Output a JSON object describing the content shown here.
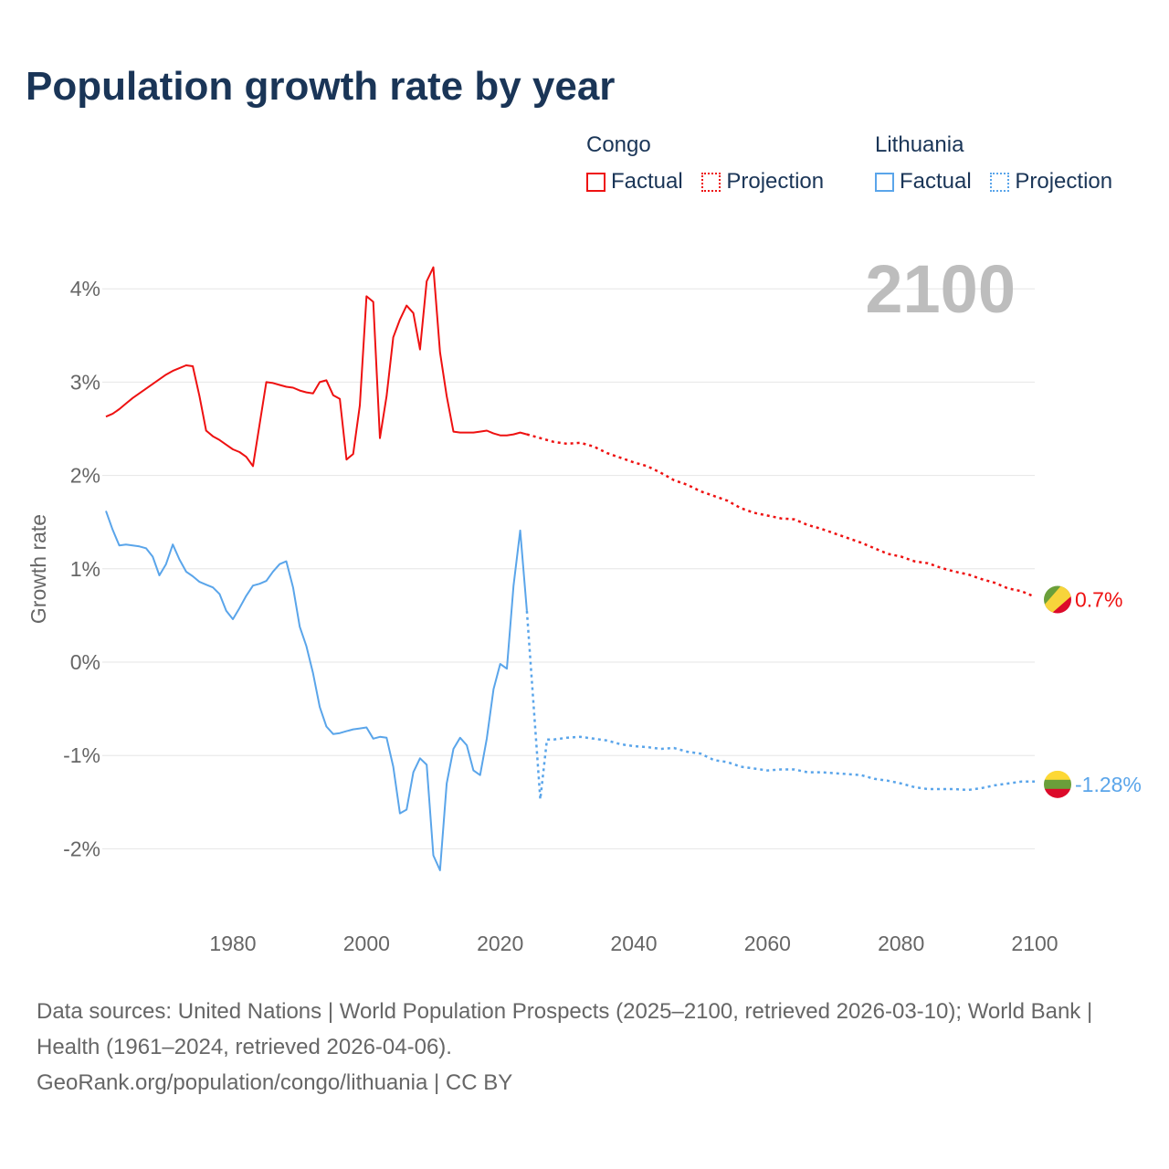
{
  "title": "Population growth rate by year",
  "legend": {
    "groups": [
      {
        "name": "Congo",
        "factual": "Factual",
        "projection": "Projection",
        "color": "#ee1111"
      },
      {
        "name": "Lithuania",
        "factual": "Factual",
        "projection": "Projection",
        "color": "#5aa5ea"
      }
    ]
  },
  "footer": {
    "sources": "Data sources: United Nations | World Population Prospects (2025–2100, retrieved 2026-03-10); World Bank | Health (1961–2024, retrieved 2026-04-06).",
    "credit": "GeoRank.org/population/congo/lithuania | CC BY"
  },
  "chart_data": {
    "type": "line",
    "title": "Population growth rate by year",
    "ylabel": "Growth rate",
    "xlabel": "",
    "year_label": "2100",
    "xlim": [
      1961,
      2100
    ],
    "ylim": [
      -2.5,
      4.3
    ],
    "x_ticks": [
      1980,
      2000,
      2020,
      2040,
      2060,
      2080,
      2100
    ],
    "x_tick_labels": [
      "1980",
      "2000",
      "2020",
      "2040",
      "2060",
      "2080",
      "2100"
    ],
    "y_ticks": [
      4,
      3,
      2,
      1,
      0,
      -1,
      -2
    ],
    "y_tick_labels": [
      "4%",
      "3%",
      "2%",
      "1%",
      "0%",
      "-1%",
      "-2%"
    ],
    "grid": true,
    "series": [
      {
        "name": "Congo",
        "color": "#ee1111",
        "end_label": "0.7%",
        "flag_colors": [
          "#6a9f3a",
          "#f7d43b",
          "#dc0a2a"
        ],
        "factual": {
          "x": [
            1961,
            1962,
            1963,
            1964,
            1965,
            1966,
            1967,
            1968,
            1969,
            1970,
            1971,
            1972,
            1973,
            1974,
            1975,
            1976,
            1977,
            1978,
            1979,
            1980,
            1981,
            1982,
            1983,
            1984,
            1985,
            1986,
            1987,
            1988,
            1989,
            1990,
            1991,
            1992,
            1993,
            1994,
            1995,
            1996,
            1997,
            1998,
            1999,
            2000,
            2001,
            2002,
            2003,
            2004,
            2005,
            2006,
            2007,
            2008,
            2009,
            2010,
            2011,
            2012,
            2013,
            2014,
            2015,
            2016,
            2017,
            2018,
            2019,
            2020,
            2021,
            2022,
            2023,
            2024
          ],
          "y": [
            2.63,
            2.66,
            2.71,
            2.77,
            2.83,
            2.88,
            2.93,
            2.98,
            3.03,
            3.08,
            3.12,
            3.15,
            3.18,
            3.17,
            2.85,
            2.48,
            2.42,
            2.38,
            2.33,
            2.28,
            2.25,
            2.2,
            2.1,
            2.55,
            3.0,
            2.99,
            2.97,
            2.95,
            2.94,
            2.91,
            2.89,
            2.88,
            3.0,
            3.02,
            2.86,
            2.82,
            2.17,
            2.23,
            2.75,
            3.92,
            3.86,
            2.4,
            2.85,
            3.48,
            3.67,
            3.82,
            3.74,
            3.35,
            4.08,
            4.23,
            3.32,
            2.85,
            2.47,
            2.46,
            2.46,
            2.46,
            2.47,
            2.48,
            2.45,
            2.43,
            2.43,
            2.44,
            2.46,
            2.44
          ]
        },
        "projection": {
          "x": [
            2024,
            2026,
            2028,
            2030,
            2032,
            2034,
            2036,
            2038,
            2040,
            2042,
            2044,
            2046,
            2048,
            2050,
            2052,
            2054,
            2056,
            2058,
            2060,
            2062,
            2064,
            2066,
            2068,
            2070,
            2072,
            2074,
            2076,
            2078,
            2080,
            2082,
            2084,
            2086,
            2088,
            2090,
            2092,
            2094,
            2096,
            2098,
            2100
          ],
          "y": [
            2.44,
            2.4,
            2.36,
            2.34,
            2.35,
            2.31,
            2.24,
            2.19,
            2.14,
            2.1,
            2.03,
            1.95,
            1.9,
            1.83,
            1.78,
            1.73,
            1.65,
            1.6,
            1.57,
            1.54,
            1.53,
            1.47,
            1.43,
            1.38,
            1.33,
            1.28,
            1.22,
            1.16,
            1.13,
            1.08,
            1.06,
            1.01,
            0.97,
            0.94,
            0.89,
            0.85,
            0.79,
            0.76,
            0.7
          ]
        }
      },
      {
        "name": "Lithuania",
        "color": "#5aa5ea",
        "end_label": "-1.28%",
        "flag_colors": [
          "#fdd835",
          "#6a9f3a",
          "#dc0a2a"
        ],
        "factual": {
          "x": [
            1961,
            1962,
            1963,
            1964,
            1965,
            1966,
            1967,
            1968,
            1969,
            1970,
            1971,
            1972,
            1973,
            1974,
            1975,
            1976,
            1977,
            1978,
            1979,
            1980,
            1981,
            1982,
            1983,
            1984,
            1985,
            1986,
            1987,
            1988,
            1989,
            1990,
            1991,
            1992,
            1993,
            1994,
            1995,
            1996,
            1997,
            1998,
            1999,
            2000,
            2001,
            2002,
            2003,
            2004,
            2005,
            2006,
            2007,
            2008,
            2009,
            2010,
            2011,
            2012,
            2013,
            2014,
            2015,
            2016,
            2017,
            2018,
            2019,
            2020,
            2021,
            2022,
            2023,
            2024
          ],
          "y": [
            1.62,
            1.42,
            1.25,
            1.26,
            1.25,
            1.24,
            1.22,
            1.13,
            0.93,
            1.05,
            1.26,
            1.1,
            0.97,
            0.92,
            0.86,
            0.83,
            0.8,
            0.73,
            0.55,
            0.46,
            0.58,
            0.71,
            0.82,
            0.84,
            0.87,
            0.97,
            1.05,
            1.08,
            0.8,
            0.38,
            0.17,
            -0.12,
            -0.48,
            -0.69,
            -0.77,
            -0.76,
            -0.74,
            -0.72,
            -0.71,
            -0.7,
            -0.82,
            -0.8,
            -0.81,
            -1.12,
            -1.62,
            -1.58,
            -1.18,
            -1.03,
            -1.1,
            -2.07,
            -2.23,
            -1.3,
            -0.93,
            -0.81,
            -0.89,
            -1.16,
            -1.21,
            -0.82,
            -0.29,
            -0.02,
            -0.07,
            0.82,
            1.41,
            0.55
          ]
        },
        "projection": {
          "x": [
            2024,
            2026,
            2027,
            2028,
            2030,
            2032,
            2034,
            2036,
            2038,
            2040,
            2042,
            2044,
            2046,
            2048,
            2050,
            2052,
            2054,
            2056,
            2058,
            2060,
            2062,
            2064,
            2066,
            2068,
            2070,
            2072,
            2074,
            2076,
            2078,
            2080,
            2082,
            2084,
            2086,
            2088,
            2090,
            2092,
            2094,
            2096,
            2098,
            2100
          ],
          "y": [
            0.55,
            -1.47,
            -0.83,
            -0.83,
            -0.81,
            -0.8,
            -0.82,
            -0.84,
            -0.88,
            -0.9,
            -0.91,
            -0.93,
            -0.92,
            -0.96,
            -0.98,
            -1.05,
            -1.07,
            -1.12,
            -1.14,
            -1.16,
            -1.15,
            -1.15,
            -1.18,
            -1.18,
            -1.19,
            -1.2,
            -1.21,
            -1.25,
            -1.27,
            -1.3,
            -1.34,
            -1.36,
            -1.36,
            -1.36,
            -1.37,
            -1.35,
            -1.32,
            -1.3,
            -1.28,
            -1.28
          ]
        }
      }
    ]
  }
}
